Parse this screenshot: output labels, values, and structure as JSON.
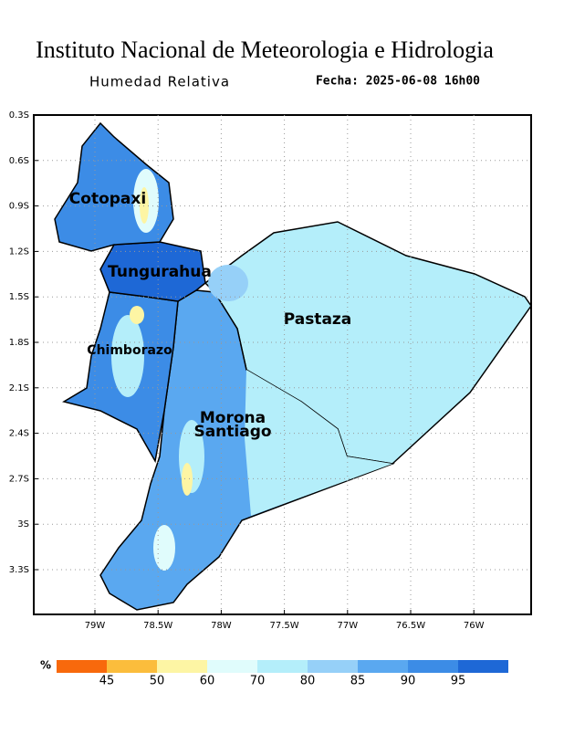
{
  "title": "Instituto Nacional de Meteorologia e Hidrologia",
  "subtitle": "Humedad Relativa",
  "date": "Fecha: 2025-06-08 16h00",
  "lat_ticks": [
    "0.3S",
    "0.6S",
    "0.9S",
    "1.2S",
    "1.5S",
    "1.8S",
    "2.1S",
    "2.4S",
    "2.7S",
    "3S",
    "3.3S"
  ],
  "lon_ticks": [
    "79W",
    "78.5W",
    "78W",
    "77.5W",
    "77W",
    "76.5W",
    "76W"
  ],
  "regions": [
    {
      "lines": [
        "Cotopaxi"
      ]
    },
    {
      "lines": [
        "Tungurahua"
      ]
    },
    {
      "lines": [
        "Pastaza"
      ]
    },
    {
      "lines": [
        "Chimborazo"
      ]
    },
    {
      "lines": [
        "Morona",
        "Santiago"
      ]
    }
  ],
  "legend": {
    "unit": "%",
    "labels": [
      "45",
      "50",
      "60",
      "70",
      "80",
      "85",
      "90",
      "95"
    ],
    "colors": [
      "#f8690c",
      "#fbbd3c",
      "#fdf5a4",
      "#e0fcfc",
      "#b4eefa",
      "#96d0f8",
      "#5aa8f0",
      "#3c8ce6",
      "#1e68d6"
    ]
  }
}
